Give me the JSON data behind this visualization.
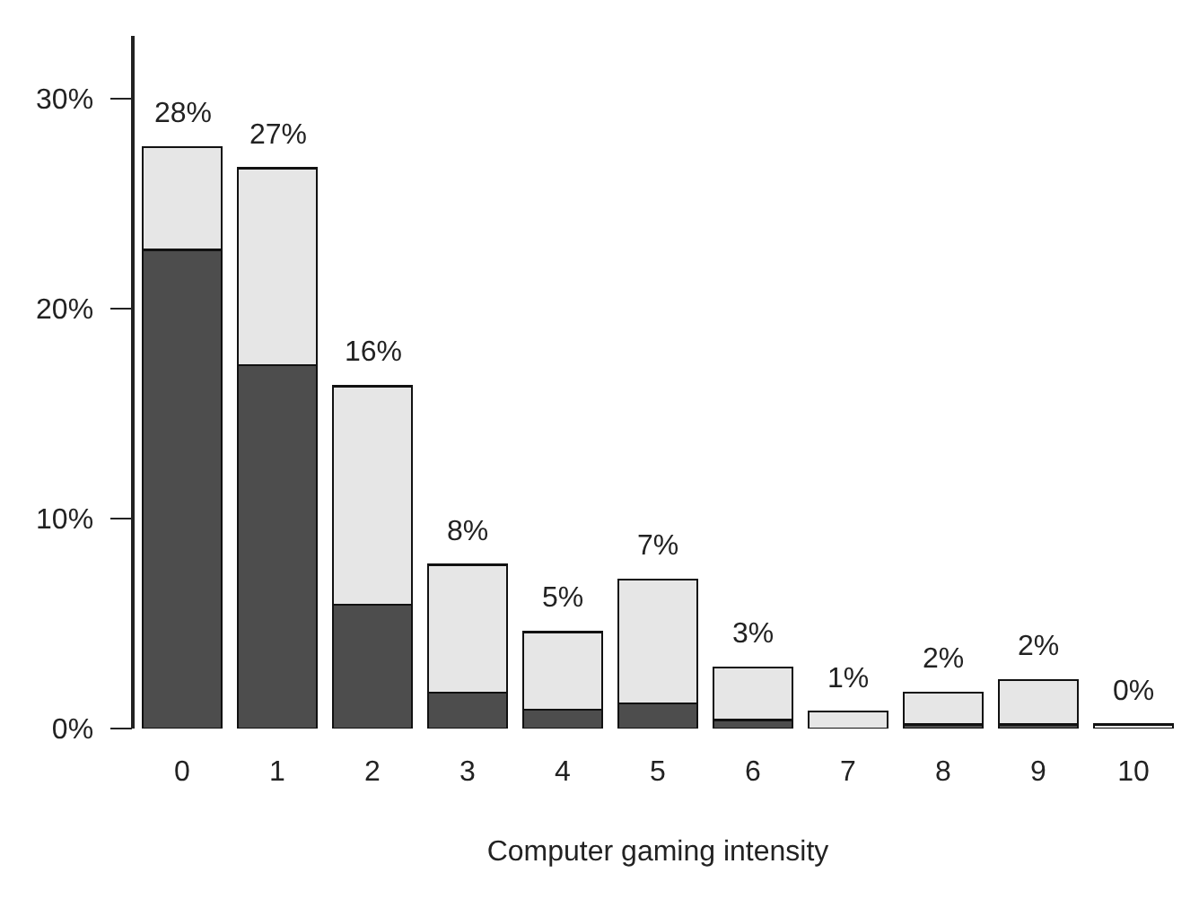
{
  "chart_data": {
    "type": "bar",
    "stacked": true,
    "xlabel": "Computer gaming intensity",
    "categories": [
      "0",
      "1",
      "2",
      "3",
      "4",
      "5",
      "6",
      "7",
      "8",
      "9",
      "10"
    ],
    "series": [
      {
        "color": "#4d4d4d",
        "values": [
          22.8,
          17.3,
          5.9,
          1.7,
          0.9,
          1.2,
          0.4,
          null,
          0.2,
          0.2,
          null
        ]
      },
      {
        "color": "#e6e6e6",
        "values": [
          4.9,
          9.4,
          10.4,
          6.1,
          3.7,
          5.9,
          2.5,
          0.8,
          1.5,
          2.1,
          0.2
        ]
      }
    ],
    "totals": [
      "28%",
      "27%",
      "16%",
      "8%",
      "5%",
      "7%",
      "3%",
      "1%",
      "2%",
      "2%",
      "0%"
    ],
    "ylim": [
      0,
      33
    ],
    "yticks": [
      {
        "value": 0,
        "label": "0%"
      },
      {
        "value": 10,
        "label": "10%"
      },
      {
        "value": 20,
        "label": "20%"
      },
      {
        "value": 30,
        "label": "30%"
      }
    ],
    "grid": false
  }
}
